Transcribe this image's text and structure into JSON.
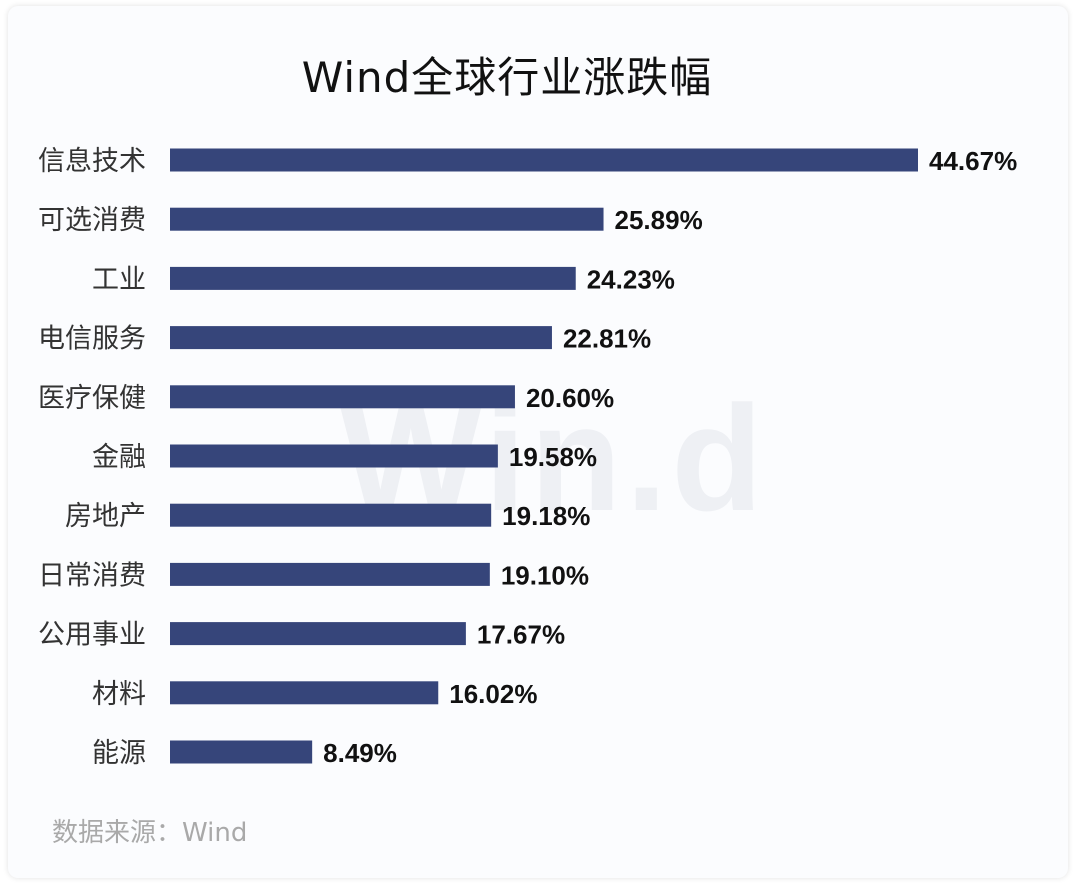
{
  "title": "Wind全球行业涨跌幅",
  "source": "数据来源：Wind",
  "watermark": "Win.d",
  "colors": {
    "bar": "#36457a"
  },
  "chart_data": {
    "type": "bar",
    "orientation": "horizontal",
    "title": "Wind全球行业涨跌幅",
    "xlabel": "",
    "ylabel": "",
    "xlim": [
      0,
      44.67
    ],
    "grid": false,
    "categories": [
      "信息技术",
      "可选消费",
      "工业",
      "电信服务",
      "医疗保健",
      "金融",
      "房地产",
      "日常消费",
      "公用事业",
      "材料",
      "能源"
    ],
    "values": [
      44.67,
      25.89,
      24.23,
      22.81,
      20.6,
      19.58,
      19.18,
      19.1,
      17.67,
      16.02,
      8.49
    ],
    "value_labels": [
      "44.67%",
      "25.89%",
      "24.23%",
      "22.81%",
      "20.60%",
      "19.58%",
      "19.18%",
      "19.10%",
      "17.67%",
      "16.02%",
      "8.49%"
    ]
  }
}
